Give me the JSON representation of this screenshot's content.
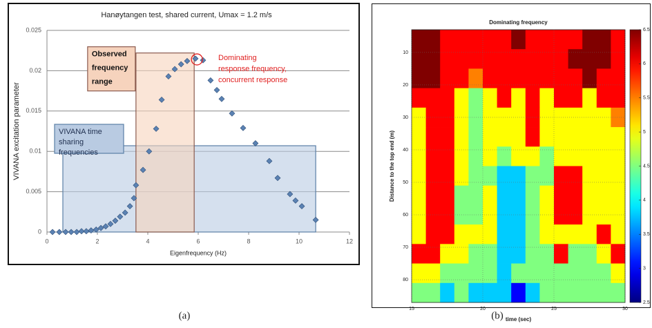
{
  "captions": [
    "(a)",
    "(b)"
  ],
  "chart_data": [
    {
      "type": "scatter",
      "title": "Hanøytangen test, shared current, Umax = 1.2 m/s",
      "xlabel": "Eigenfrequency (Hz)",
      "ylabel": "VIVANA excitation parameter",
      "xlim": [
        0,
        12
      ],
      "xticks": [
        0,
        2,
        4,
        6,
        8,
        10,
        12
      ],
      "ylim": [
        0,
        0.025
      ],
      "yticks": [
        0,
        0.005,
        0.01,
        0.015,
        0.02,
        0.025
      ],
      "grid": true,
      "color": "#5b82b3",
      "x": [
        0.22,
        0.49,
        0.74,
        0.96,
        1.18,
        1.37,
        1.56,
        1.75,
        1.95,
        2.14,
        2.33,
        2.52,
        2.71,
        2.9,
        3.1,
        3.29,
        3.45,
        3.53,
        3.81,
        4.05,
        4.33,
        4.55,
        4.82,
        5.07,
        5.32,
        5.56,
        5.89,
        6.19,
        6.49,
        6.74,
        6.93,
        7.34,
        7.78,
        8.27,
        8.82,
        9.15,
        9.64,
        9.86,
        10.11,
        10.66
      ],
      "values": [
        0,
        0,
        0,
        0,
        0,
        0.0001,
        0.0001,
        0.0002,
        0.0003,
        0.0005,
        0.0007,
        0.001,
        0.0014,
        0.0019,
        0.0024,
        0.0032,
        0.0042,
        0.0058,
        0.0077,
        0.01,
        0.0128,
        0.0164,
        0.0193,
        0.0202,
        0.0208,
        0.0212,
        0.0215,
        0.0213,
        0.0188,
        0.0176,
        0.0165,
        0.0147,
        0.0129,
        0.011,
        0.0088,
        0.0067,
        0.0047,
        0.0039,
        0.0032,
        0.0015
      ],
      "regions": [
        {
          "label": [
            "VIVANA time",
            "sharing",
            "frequencies"
          ],
          "x": [
            0.63,
            10.66
          ],
          "y": [
            0,
            0.0107
          ],
          "color": "#b9cbe2",
          "edge": "#5a7fa6"
        },
        {
          "label": [
            "Observed",
            "frequency",
            "range"
          ],
          "x": [
            3.53,
            5.84
          ],
          "y": [
            0,
            0.0222
          ],
          "color": "#f6d3bd",
          "edge": "#8a5a4e"
        }
      ],
      "highlight": {
        "x": 5.95,
        "y": 0.0214,
        "color": "#e02020"
      },
      "annotation": [
        "Dominating",
        "response frequency,",
        "concurrent response"
      ],
      "annotation_color": "#e02020"
    },
    {
      "type": "heatmap",
      "title": "Dominating frequency",
      "xlabel": "time (sec)",
      "ylabel": "Distance to the top end (m)",
      "xlim": [
        15,
        30
      ],
      "xticks": [
        15,
        20,
        25,
        30
      ],
      "ylim": [
        3,
        87
      ],
      "y_inverted": true,
      "yticks": [
        10,
        20,
        30,
        40,
        50,
        60,
        70,
        80
      ],
      "colormap": "jet",
      "clim": [
        2.5,
        6.5
      ],
      "cticks": [
        6.5,
        6,
        5.5,
        5,
        4.5,
        4,
        3.5,
        3,
        2.5
      ],
      "x_edges": [
        15,
        16,
        17,
        18,
        19,
        20,
        21,
        22,
        23,
        24,
        25,
        26,
        27,
        28,
        29,
        30
      ],
      "y_edges": [
        3,
        9,
        15,
        21,
        27,
        33,
        39,
        45,
        51,
        57,
        63,
        69,
        75,
        81,
        87
      ],
      "z": [
        [
          6.5,
          6.5,
          6,
          6,
          6,
          6,
          6,
          6.5,
          6,
          6,
          6,
          6,
          6.5,
          6.5,
          6
        ],
        [
          6.5,
          6.5,
          6,
          6,
          6,
          6,
          6,
          6,
          6,
          6,
          6,
          6.5,
          6.5,
          6.5,
          6
        ],
        [
          6.5,
          6.5,
          6,
          6,
          5.5,
          6,
          6,
          6,
          6,
          6,
          6,
          6,
          6.5,
          6,
          6
        ],
        [
          6,
          6,
          6,
          5,
          4.5,
          5,
          6,
          5,
          6,
          5,
          6,
          6,
          5,
          6,
          6
        ],
        [
          5,
          6,
          6,
          5,
          4.5,
          5,
          5,
          5,
          6,
          5,
          5,
          5,
          5,
          5,
          5.5
        ],
        [
          5,
          6,
          6,
          5,
          4.5,
          5,
          5,
          5,
          6,
          5,
          5,
          5,
          5,
          5,
          5
        ],
        [
          5,
          6,
          6,
          5,
          4.5,
          5,
          4.5,
          5,
          5,
          4.5,
          5,
          5,
          5,
          5,
          5
        ],
        [
          5,
          6,
          6,
          5,
          4.5,
          4.5,
          3.8,
          3.8,
          4.5,
          4.5,
          6,
          6,
          5,
          5,
          5
        ],
        [
          5,
          6,
          6,
          4.5,
          4.5,
          5,
          3.8,
          3.8,
          4.5,
          5,
          6,
          6,
          5,
          5,
          5
        ],
        [
          5,
          6,
          6,
          4.5,
          4.5,
          5,
          3.8,
          3.8,
          4.5,
          5,
          6,
          6,
          5,
          5,
          5
        ],
        [
          5,
          6,
          6,
          5,
          5,
          5,
          3.8,
          3.8,
          4.5,
          5,
          5,
          5,
          5,
          6,
          5
        ],
        [
          6,
          6,
          5,
          5,
          4.5,
          4.5,
          3.8,
          3.8,
          4.5,
          4.5,
          6,
          4.5,
          4.5,
          5,
          6
        ],
        [
          5,
          5,
          4.5,
          4.5,
          4.5,
          4.5,
          3.8,
          4.5,
          4.5,
          4.5,
          4.5,
          4.5,
          4.5,
          4.5,
          5
        ],
        [
          4.5,
          4.5,
          3.8,
          4.5,
          3.8,
          3.8,
          3.8,
          3,
          3.8,
          4.5,
          4.5,
          4.5,
          4.5,
          4.5,
          4.5
        ]
      ]
    }
  ]
}
